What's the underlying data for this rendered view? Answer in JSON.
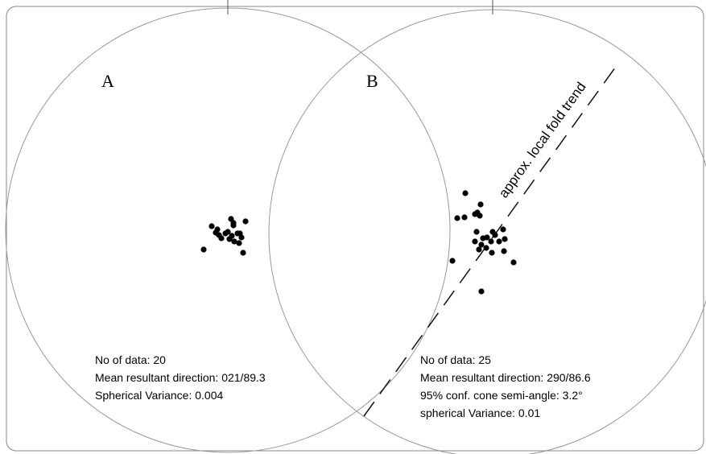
{
  "panels": [
    {
      "label": "A",
      "stats": [
        "No of data: 20",
        "Mean resultant direction: 021/89.3",
        "Spherical Variance: 0.004"
      ]
    },
    {
      "label": "B",
      "stats": [
        "No of data: 25",
        "Mean resultant direction: 290/86.6",
        "95% conf. cone semi-angle: 3.2°",
        "spherical Variance: 0.01"
      ]
    }
  ],
  "annotation": "approx. local fold trend"
}
